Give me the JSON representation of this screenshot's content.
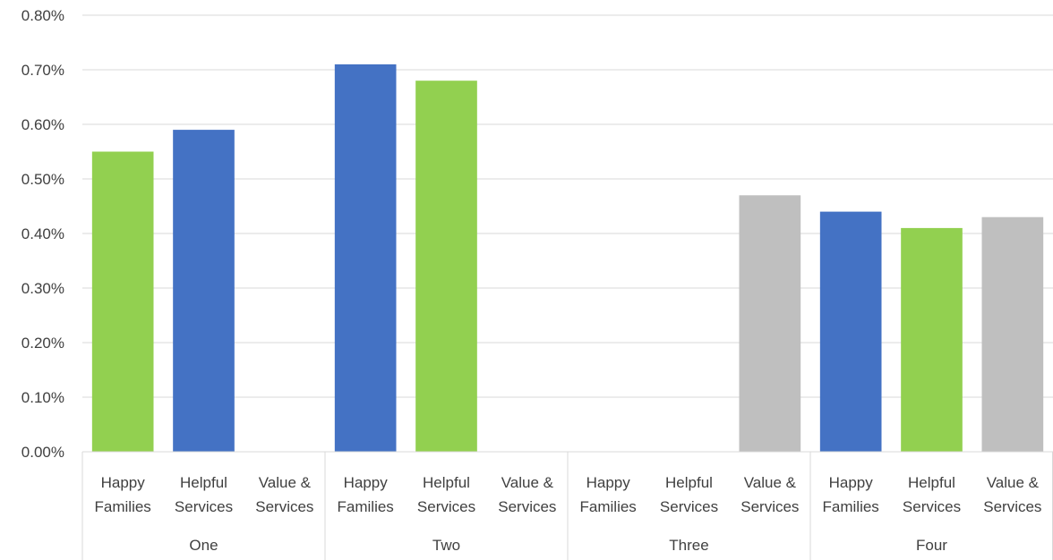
{
  "chart_data": {
    "type": "bar",
    "groups": [
      {
        "name": "One",
        "bars": [
          {
            "category": [
              "Happy",
              "Families"
            ],
            "value": 0.55,
            "color": "#92d050"
          },
          {
            "category": [
              "Helpful",
              "Services"
            ],
            "value": 0.59,
            "color": "#4472c4"
          },
          {
            "category": [
              "Value &",
              "Services"
            ],
            "value": 0,
            "color": "#bfbfbf"
          }
        ]
      },
      {
        "name": "Two",
        "bars": [
          {
            "category": [
              "Happy",
              "Families"
            ],
            "value": 0.71,
            "color": "#4472c4"
          },
          {
            "category": [
              "Helpful",
              "Services"
            ],
            "value": 0.68,
            "color": "#92d050"
          },
          {
            "category": [
              "Value &",
              "Services"
            ],
            "value": 0,
            "color": "#bfbfbf"
          }
        ]
      },
      {
        "name": "Three",
        "bars": [
          {
            "category": [
              "Happy",
              "Families"
            ],
            "value": 0,
            "color": "#4472c4"
          },
          {
            "category": [
              "Helpful",
              "Services"
            ],
            "value": 0,
            "color": "#92d050"
          },
          {
            "category": [
              "Value &",
              "Services"
            ],
            "value": 0.47,
            "color": "#bfbfbf"
          }
        ]
      },
      {
        "name": "Four",
        "bars": [
          {
            "category": [
              "Happy",
              "Families"
            ],
            "value": 0.44,
            "color": "#4472c4"
          },
          {
            "category": [
              "Helpful",
              "Services"
            ],
            "value": 0.41,
            "color": "#92d050"
          },
          {
            "category": [
              "Value &",
              "Services"
            ],
            "value": 0.43,
            "color": "#bfbfbf"
          }
        ]
      }
    ],
    "y_unit": "%",
    "ylim": [
      0,
      0.8
    ],
    "yticks": [
      "0.00%",
      "0.10%",
      "0.20%",
      "0.30%",
      "0.40%",
      "0.50%",
      "0.60%",
      "0.70%",
      "0.80%"
    ],
    "grid": true,
    "title": "",
    "xlabel": "",
    "ylabel": ""
  }
}
